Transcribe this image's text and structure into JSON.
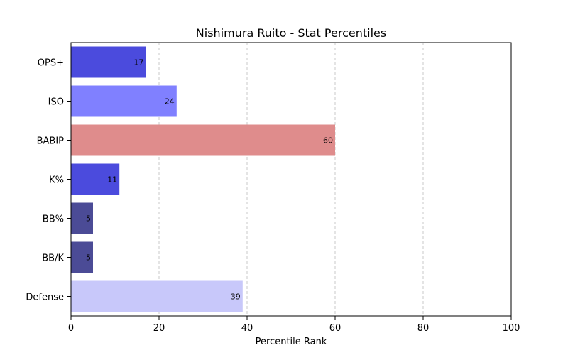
{
  "chart_data": {
    "type": "bar",
    "orientation": "horizontal",
    "title": "Nishimura Ruito - Stat Percentiles",
    "xlabel": "Percentile Rank",
    "ylabel": "",
    "xlim": [
      0,
      100
    ],
    "xticks": [
      0,
      20,
      40,
      60,
      80,
      100
    ],
    "grid": "x-dashed",
    "categories": [
      "OPS+",
      "ISO",
      "BABIP",
      "K%",
      "BB%",
      "BB/K",
      "Defense"
    ],
    "values": [
      17,
      24,
      60,
      11,
      5,
      5,
      39
    ],
    "colors": [
      "#4b4bdd",
      "#8080ff",
      "#df8c8c",
      "#4b4bdd",
      "#4b4b96",
      "#4b4b96",
      "#c8c8fa"
    ]
  }
}
